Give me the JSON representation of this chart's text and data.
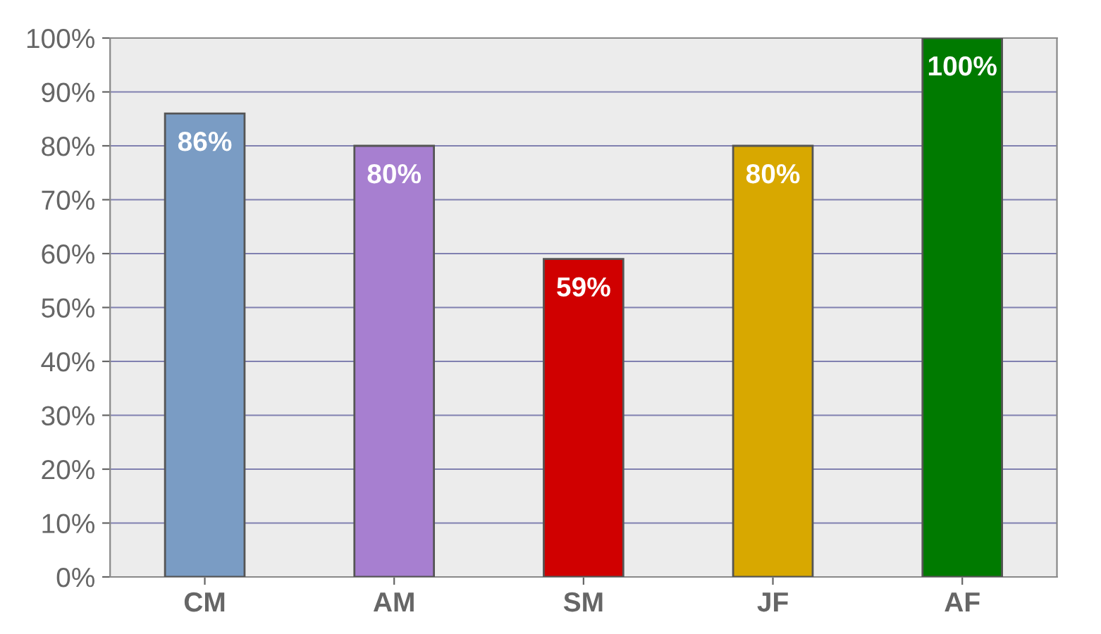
{
  "chart_data": {
    "type": "bar",
    "categories": [
      "CM",
      "AM",
      "SM",
      "JF",
      "AF"
    ],
    "values": [
      86,
      80,
      59,
      80,
      100
    ],
    "colors": [
      "#7a9cc4",
      "#a77fd0",
      "#d00000",
      "#d8a800",
      "#007a00"
    ],
    "value_labels": [
      "86%",
      "80%",
      "59%",
      "80%",
      "100%"
    ],
    "ylim": [
      0,
      100
    ],
    "yticks": [
      {
        "value": 0,
        "label": "0%"
      },
      {
        "value": 10,
        "label": "10%"
      },
      {
        "value": 20,
        "label": "20%"
      },
      {
        "value": 30,
        "label": "30%"
      },
      {
        "value": 40,
        "label": "40%"
      },
      {
        "value": 50,
        "label": "50%"
      },
      {
        "value": 60,
        "label": "60%"
      },
      {
        "value": 70,
        "label": "70%"
      },
      {
        "value": 80,
        "label": "80%"
      },
      {
        "value": 90,
        "label": "90%"
      },
      {
        "value": 100,
        "label": "100%"
      }
    ],
    "grid": "y"
  }
}
